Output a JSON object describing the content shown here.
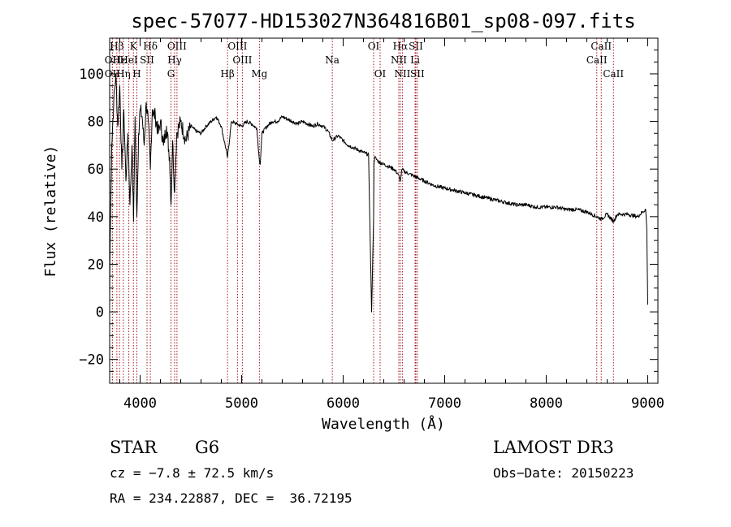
{
  "chart_data": {
    "type": "line",
    "title": "spec-57077-HD153027N364816B01_sp08-097.fits",
    "xlabel": "Wavelength (Å)",
    "ylabel": "Flux (relative)",
    "xlim": [
      3700,
      9100
    ],
    "ylim": [
      -30,
      115
    ],
    "x_ticks": [
      4000,
      5000,
      6000,
      7000,
      8000,
      9000
    ],
    "y_ticks": [
      -20,
      0,
      20,
      40,
      60,
      80,
      100
    ],
    "series": [
      {
        "name": "flux",
        "x": [
          3700,
          3705,
          3720,
          3740,
          3760,
          3780,
          3800,
          3820,
          3840,
          3860,
          3880,
          3900,
          3920,
          3935,
          3950,
          3968,
          3985,
          4000,
          4020,
          4040,
          4060,
          4080,
          4101,
          4120,
          4150,
          4180,
          4200,
          4230,
          4260,
          4290,
          4305,
          4320,
          4340,
          4360,
          4400,
          4450,
          4500,
          4550,
          4600,
          4650,
          4700,
          4750,
          4800,
          4861,
          4900,
          4950,
          5000,
          5050,
          5100,
          5150,
          5172,
          5183,
          5200,
          5250,
          5300,
          5350,
          5400,
          5450,
          5500,
          5550,
          5600,
          5650,
          5700,
          5750,
          5800,
          5850,
          5893,
          5950,
          6000,
          6050,
          6100,
          6150,
          6200,
          6250,
          6280,
          6300,
          6303,
          6310,
          6330,
          6350,
          6400,
          6450,
          6500,
          6540,
          6563,
          6580,
          6600,
          6650,
          6700,
          6750,
          6800,
          6900,
          7000,
          7100,
          7200,
          7300,
          7400,
          7500,
          7600,
          7700,
          7800,
          7900,
          8000,
          8100,
          8200,
          8300,
          8400,
          8498,
          8542,
          8600,
          8662,
          8700,
          8800,
          8900,
          8950,
          8980,
          8990,
          9000
        ],
        "y": [
          5,
          30,
          70,
          88,
          100,
          78,
          95,
          60,
          85,
          55,
          75,
          45,
          70,
          38,
          82,
          40,
          75,
          85,
          82,
          70,
          88,
          80,
          60,
          85,
          82,
          75,
          80,
          70,
          78,
          65,
          45,
          72,
          50,
          75,
          80,
          72,
          78,
          76,
          75,
          78,
          80,
          82,
          78,
          65,
          80,
          79,
          78,
          80,
          79,
          77,
          65,
          62,
          75,
          78,
          80,
          80,
          82,
          81,
          80,
          79,
          80,
          79,
          78,
          79,
          78,
          76,
          72,
          74,
          72,
          70,
          69,
          68,
          67,
          66,
          0,
          40,
          62,
          65,
          64,
          63,
          62,
          61,
          60,
          58,
          55,
          60,
          59,
          58,
          57,
          56,
          55,
          53,
          52,
          51,
          50,
          49,
          48,
          47,
          46,
          45,
          45,
          44,
          44,
          44,
          43,
          43,
          42,
          40,
          39,
          41,
          38,
          41,
          41,
          40,
          42,
          43,
          35,
          3
        ]
      }
    ],
    "spectral_lines": [
      {
        "label": "Hβ",
        "x": 3771,
        "row": 1
      },
      {
        "label": "OII",
        "x": 3727,
        "row": 2
      },
      {
        "label": "Hε",
        "x": 3797,
        "row": 2
      },
      {
        "label": "OII",
        "x": 3727,
        "row": 3
      },
      {
        "label": "Hη",
        "x": 3835,
        "row": 3
      },
      {
        "label": "K",
        "x": 3934,
        "row": 1
      },
      {
        "label": "HeI",
        "x": 3889,
        "row": 2
      },
      {
        "label": "SII",
        "x": 4068,
        "row": 2
      },
      {
        "label": "H",
        "x": 3968,
        "row": 3
      },
      {
        "label": "Hδ",
        "x": 4101,
        "row": 1
      },
      {
        "label": "OIII",
        "x": 4363,
        "row": 1
      },
      {
        "label": "Hγ",
        "x": 4340,
        "row": 2
      },
      {
        "label": "G",
        "x": 4304,
        "row": 3
      },
      {
        "label": "OIII",
        "x": 4959,
        "row": 1
      },
      {
        "label": "OIII",
        "x": 5007,
        "row": 2
      },
      {
        "label": "Hβ",
        "x": 4861,
        "row": 3
      },
      {
        "label": "Mg",
        "x": 5175,
        "row": 3
      },
      {
        "label": "Na",
        "x": 5893,
        "row": 2
      },
      {
        "label": "OI",
        "x": 6300,
        "row": 1
      },
      {
        "label": "OI",
        "x": 6364,
        "row": 3
      },
      {
        "label": "Hα",
        "x": 6563,
        "row": 1
      },
      {
        "label": "SII",
        "x": 6716,
        "row": 1
      },
      {
        "label": "NII",
        "x": 6548,
        "row": 2
      },
      {
        "label": "Li",
        "x": 6708,
        "row": 2
      },
      {
        "label": "NII",
        "x": 6583,
        "row": 3
      },
      {
        "label": "SII",
        "x": 6731,
        "row": 3
      },
      {
        "label": "CaII",
        "x": 8542,
        "row": 1
      },
      {
        "label": "CaII",
        "x": 8498,
        "row": 2
      },
      {
        "label": "CaII",
        "x": 8662,
        "row": 3
      }
    ]
  },
  "info": {
    "class_label": "STAR",
    "subclass": "G6",
    "survey": "LAMOST DR3",
    "cz": "cz = −7.8 ± 72.5 km/s",
    "obs_date": "Obs−Date: 20150223",
    "coords": "RA = 234.22887, DEC =  36.72195"
  },
  "colors": {
    "line_marker": "#a0141e",
    "spectrum": "#000000"
  }
}
